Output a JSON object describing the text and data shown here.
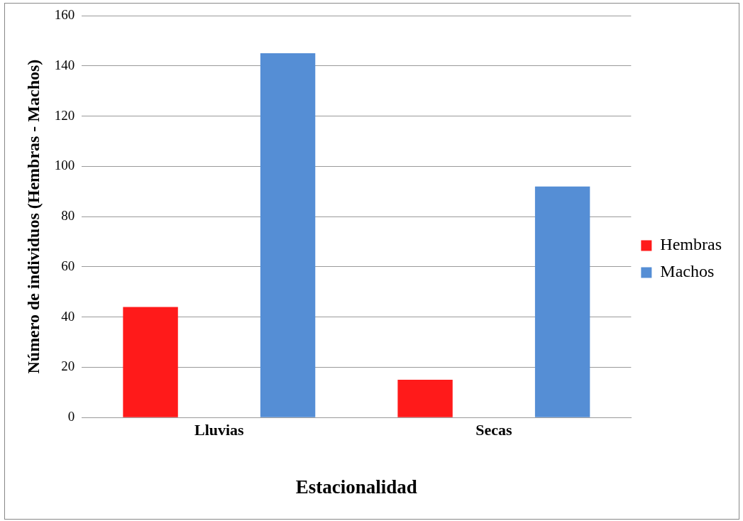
{
  "chart_data": {
    "type": "bar",
    "xlabel": "Estacionalidad",
    "ylabel": "Número de individuos (Hembras - Machos)",
    "categories": [
      "Lluvias",
      "Secas"
    ],
    "series": [
      {
        "name": "Hembras",
        "color": "#ff1a1a",
        "values": [
          44,
          15
        ]
      },
      {
        "name": "Machos",
        "color": "#558ed5",
        "values": [
          145,
          92
        ]
      }
    ],
    "ylim": [
      0,
      160
    ],
    "yticks": [
      0,
      20,
      40,
      60,
      80,
      100,
      120,
      140,
      160
    ],
    "grid": "y",
    "legend": "right"
  }
}
